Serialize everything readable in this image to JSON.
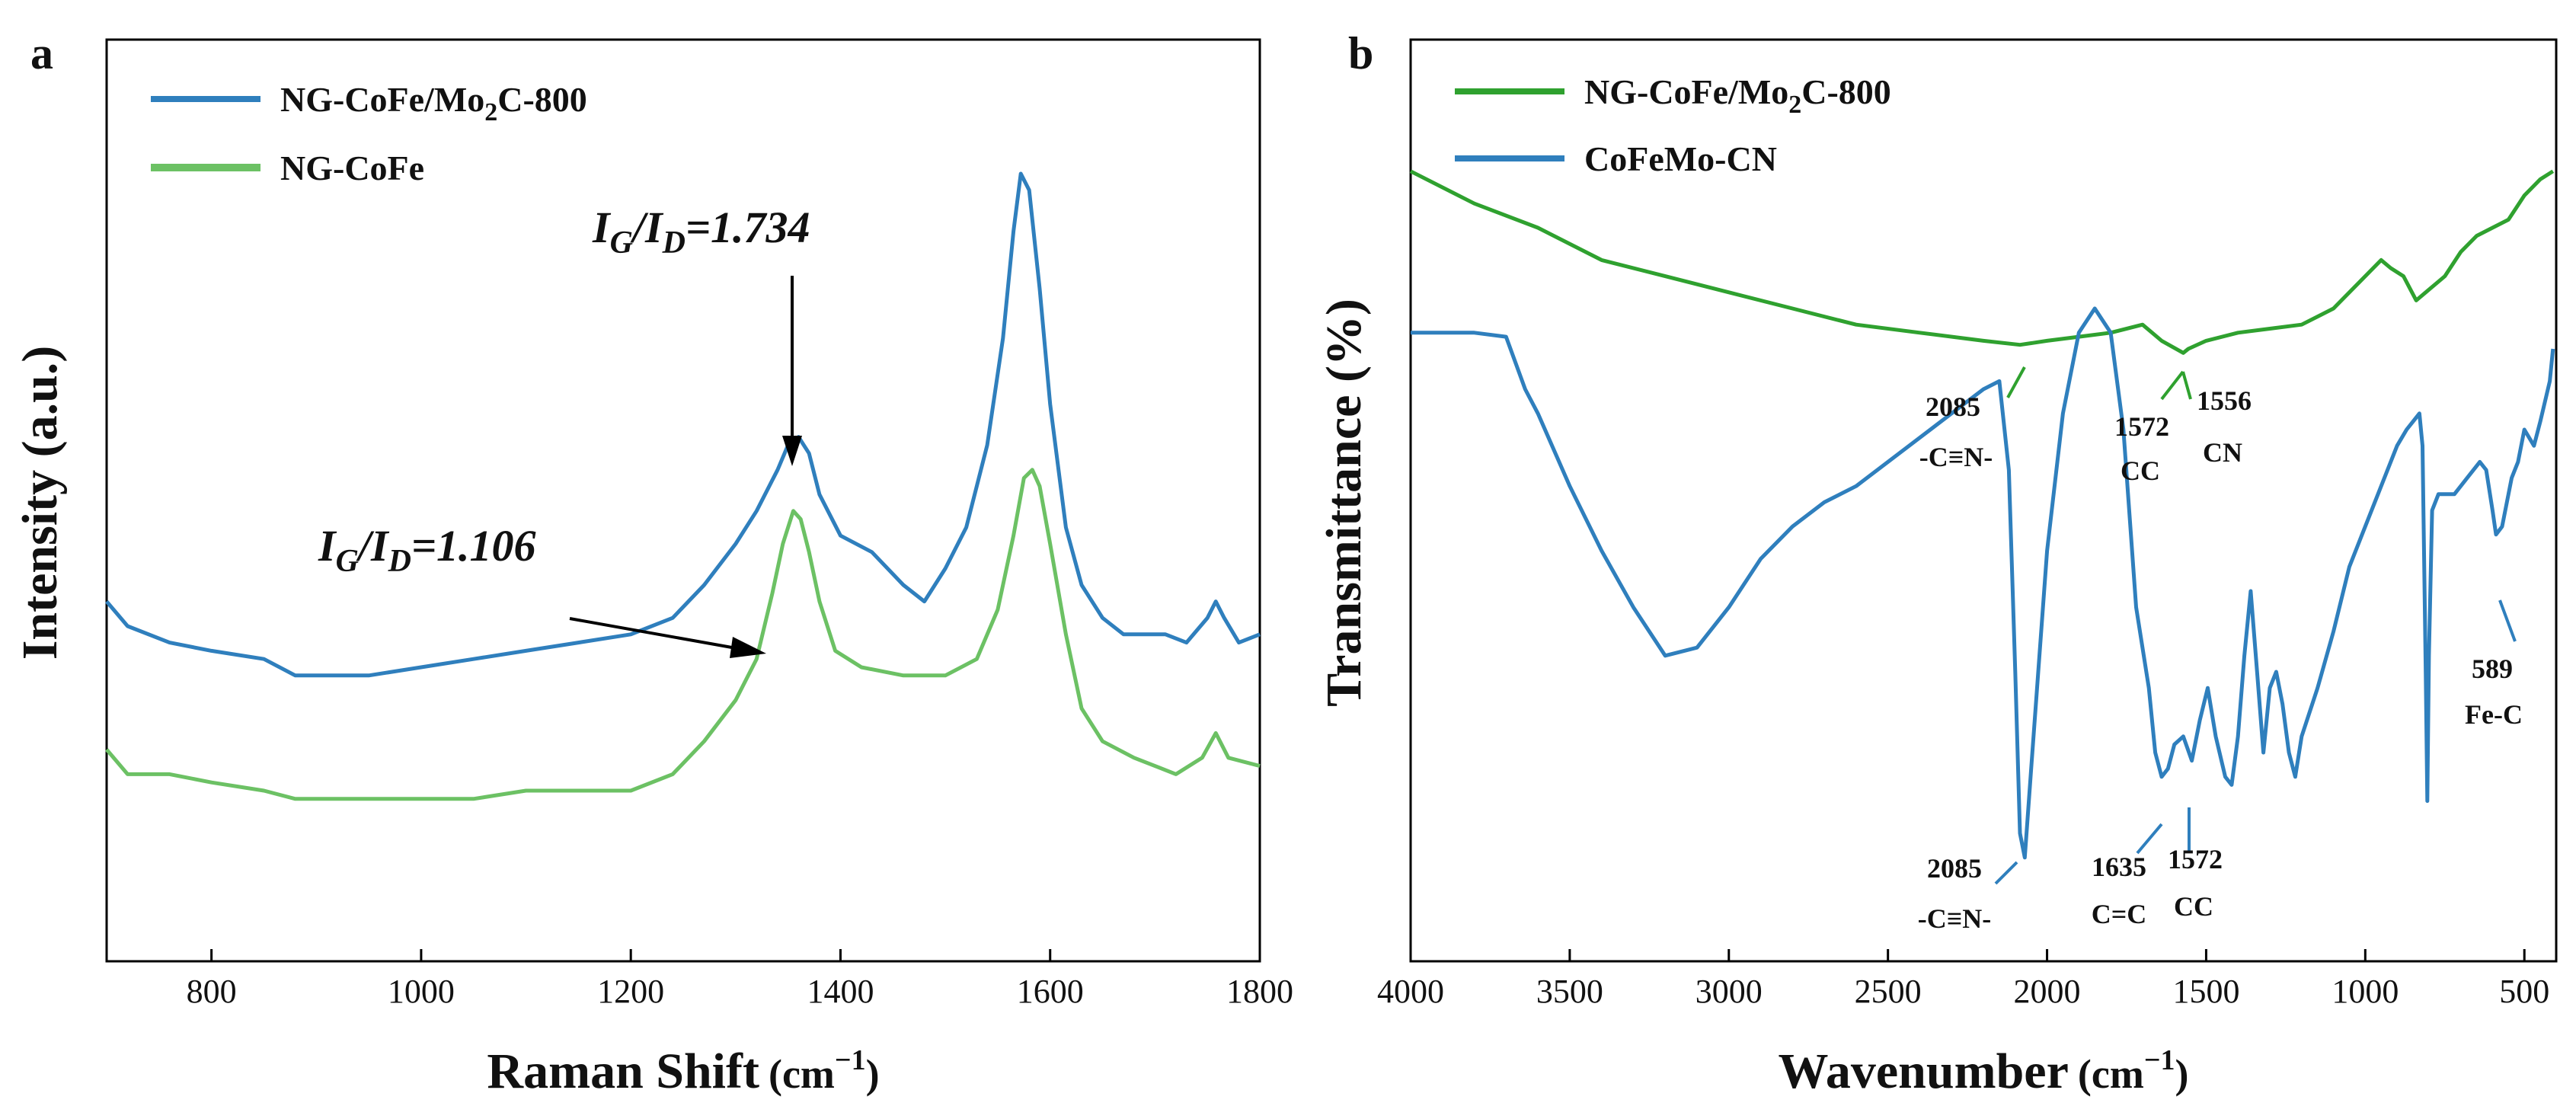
{
  "colors": {
    "blue": "#2F7FBD",
    "green": "#2FA12F",
    "green_light": "#6CC164"
  },
  "chart_data": [
    {
      "panel": "a",
      "type": "line",
      "xlabel": "Raman Shift",
      "xlabel_unit_base": "(cm",
      "xlabel_unit_exp": "−1",
      "xlabel_unit_close": ")",
      "ylabel": "Intensity (a.u.)",
      "xlim": [
        700,
        1800
      ],
      "ylim": [
        0,
        100
      ],
      "xticks": [
        "800",
        "1000",
        "1200",
        "1400",
        "1600",
        "1800"
      ],
      "yticks_shown": false,
      "series": [
        {
          "name_main": "NG-CoFe/Mo",
          "name_sub": "2",
          "name_rest": "C-800",
          "color": "#2F7FBD",
          "x": [
            700,
            720,
            760,
            800,
            850,
            880,
            950,
            1000,
            1050,
            1100,
            1150,
            1200,
            1240,
            1270,
            1300,
            1320,
            1340,
            1350,
            1360,
            1370,
            1380,
            1400,
            1430,
            1460,
            1480,
            1500,
            1520,
            1540,
            1555,
            1565,
            1572,
            1580,
            1590,
            1600,
            1615,
            1630,
            1650,
            1670,
            1690,
            1710,
            1730,
            1750,
            1758,
            1766,
            1780,
            1800
          ],
          "y": [
            38,
            35,
            33,
            32,
            31,
            29,
            29,
            30,
            31,
            32,
            33,
            34,
            36,
            40,
            45,
            49,
            54,
            57,
            58,
            56,
            51,
            46,
            44,
            40,
            38,
            42,
            47,
            57,
            70,
            83,
            90,
            88,
            76,
            62,
            47,
            40,
            36,
            34,
            34,
            34,
            33,
            36,
            38,
            36,
            33,
            34
          ]
        },
        {
          "name_main": "NG-CoFe",
          "name_sub": "",
          "name_rest": "",
          "color": "#6CC164",
          "x": [
            700,
            720,
            760,
            800,
            850,
            880,
            950,
            1000,
            1050,
            1100,
            1150,
            1200,
            1240,
            1270,
            1300,
            1320,
            1335,
            1345,
            1355,
            1362,
            1370,
            1380,
            1395,
            1420,
            1460,
            1500,
            1530,
            1550,
            1565,
            1575,
            1583,
            1590,
            1600,
            1615,
            1630,
            1650,
            1680,
            1720,
            1745,
            1758,
            1770,
            1800
          ],
          "y": [
            20,
            17,
            17,
            16,
            15,
            14,
            14,
            14,
            14,
            15,
            15,
            15,
            17,
            21,
            26,
            31,
            39,
            45,
            49,
            48,
            44,
            38,
            32,
            30,
            29,
            29,
            31,
            37,
            46,
            53,
            54,
            52,
            45,
            34,
            25,
            21,
            19,
            17,
            19,
            22,
            19,
            18
          ]
        }
      ],
      "annotations": [
        {
          "base": "I",
          "sub1": "G",
          "mid": "/I",
          "sub2": "D",
          "value": "=1.734"
        },
        {
          "base": "I",
          "sub1": "G",
          "mid": "/I",
          "sub2": "D",
          "value": "=1.106"
        }
      ]
    },
    {
      "panel": "b",
      "type": "line",
      "xlabel": "Wavenumber",
      "xlabel_unit_base": "(cm",
      "xlabel_unit_exp": "−1",
      "xlabel_unit_close": ")",
      "ylabel": "Transmittance (%)",
      "xlim": [
        4000,
        400
      ],
      "ylim": [
        0,
        100
      ],
      "xticks": [
        "4000",
        "3500",
        "3000",
        "2500",
        "2000",
        "1500",
        "1000",
        "500"
      ],
      "yticks_shown": false,
      "series": [
        {
          "name_main": "NG-CoFe/Mo",
          "name_sub": "2",
          "name_rest": "C-800",
          "color": "#2FA12F",
          "x": [
            4000,
            3800,
            3600,
            3400,
            3200,
            3000,
            2800,
            2600,
            2400,
            2200,
            2085,
            2000,
            1900,
            1800,
            1700,
            1640,
            1572,
            1556,
            1500,
            1400,
            1300,
            1200,
            1100,
            1000,
            950,
            920,
            880,
            840,
            810,
            750,
            700,
            650,
            600,
            550,
            500,
            450,
            410
          ],
          "y": [
            92,
            88,
            85,
            81,
            79,
            77,
            75,
            73,
            72,
            71,
            70.5,
            71,
            71.5,
            72,
            73,
            71,
            69.5,
            70,
            71,
            72,
            72.5,
            73,
            75,
            79,
            81,
            80,
            79,
            76,
            77,
            79,
            82,
            84,
            85,
            86,
            89,
            91,
            92
          ]
        },
        {
          "name_main": "CoFeMo-CN",
          "name_sub": "",
          "name_rest": "",
          "color": "#2F7FBD",
          "x": [
            4000,
            3800,
            3700,
            3640,
            3600,
            3500,
            3400,
            3300,
            3200,
            3100,
            3000,
            2900,
            2800,
            2700,
            2600,
            2500,
            2400,
            2300,
            2200,
            2150,
            2120,
            2100,
            2085,
            2070,
            2050,
            2000,
            1950,
            1900,
            1850,
            1800,
            1760,
            1720,
            1680,
            1660,
            1640,
            1620,
            1600,
            1572,
            1545,
            1520,
            1495,
            1470,
            1440,
            1420,
            1400,
            1380,
            1360,
            1340,
            1320,
            1300,
            1280,
            1260,
            1240,
            1220,
            1200,
            1150,
            1100,
            1050,
            1000,
            950,
            900,
            870,
            850,
            830,
            820,
            810,
            805,
            800,
            790,
            770,
            720,
            680,
            640,
            620,
            600,
            589,
            570,
            540,
            520,
            500,
            470,
            450,
            420,
            410
          ],
          "y": [
            72,
            72,
            71.5,
            65,
            62,
            53,
            45,
            38,
            32,
            33,
            38,
            44,
            48,
            51,
            53,
            56,
            59,
            62,
            65,
            66,
            55,
            30,
            10,
            7,
            18,
            45,
            62,
            72,
            75,
            72,
            60,
            38,
            28,
            20,
            17,
            18,
            21,
            22,
            19,
            24,
            28,
            22,
            17,
            16,
            22,
            32,
            40,
            30,
            20,
            28,
            30,
            26,
            20,
            17,
            22,
            28,
            35,
            43,
            48,
            53,
            58,
            60,
            61,
            62,
            58,
            30,
            14,
            32,
            50,
            52,
            52,
            54,
            56,
            55,
            50,
            47,
            48,
            54,
            56,
            60,
            58,
            61,
            66,
            70
          ]
        }
      ],
      "annotations": [
        {
          "line1": "2085",
          "line2": "-C≡N-"
        },
        {
          "line1": "1572",
          "line2": "CC"
        },
        {
          "line1": "1556",
          "line2": "CN"
        },
        {
          "line1": "2085",
          "line2": "-C≡N-"
        },
        {
          "line1": "1635",
          "line2": "C=C"
        },
        {
          "line1": "1572",
          "line2": "CC"
        },
        {
          "line1": "589",
          "line2": "Fe-C"
        }
      ]
    }
  ]
}
